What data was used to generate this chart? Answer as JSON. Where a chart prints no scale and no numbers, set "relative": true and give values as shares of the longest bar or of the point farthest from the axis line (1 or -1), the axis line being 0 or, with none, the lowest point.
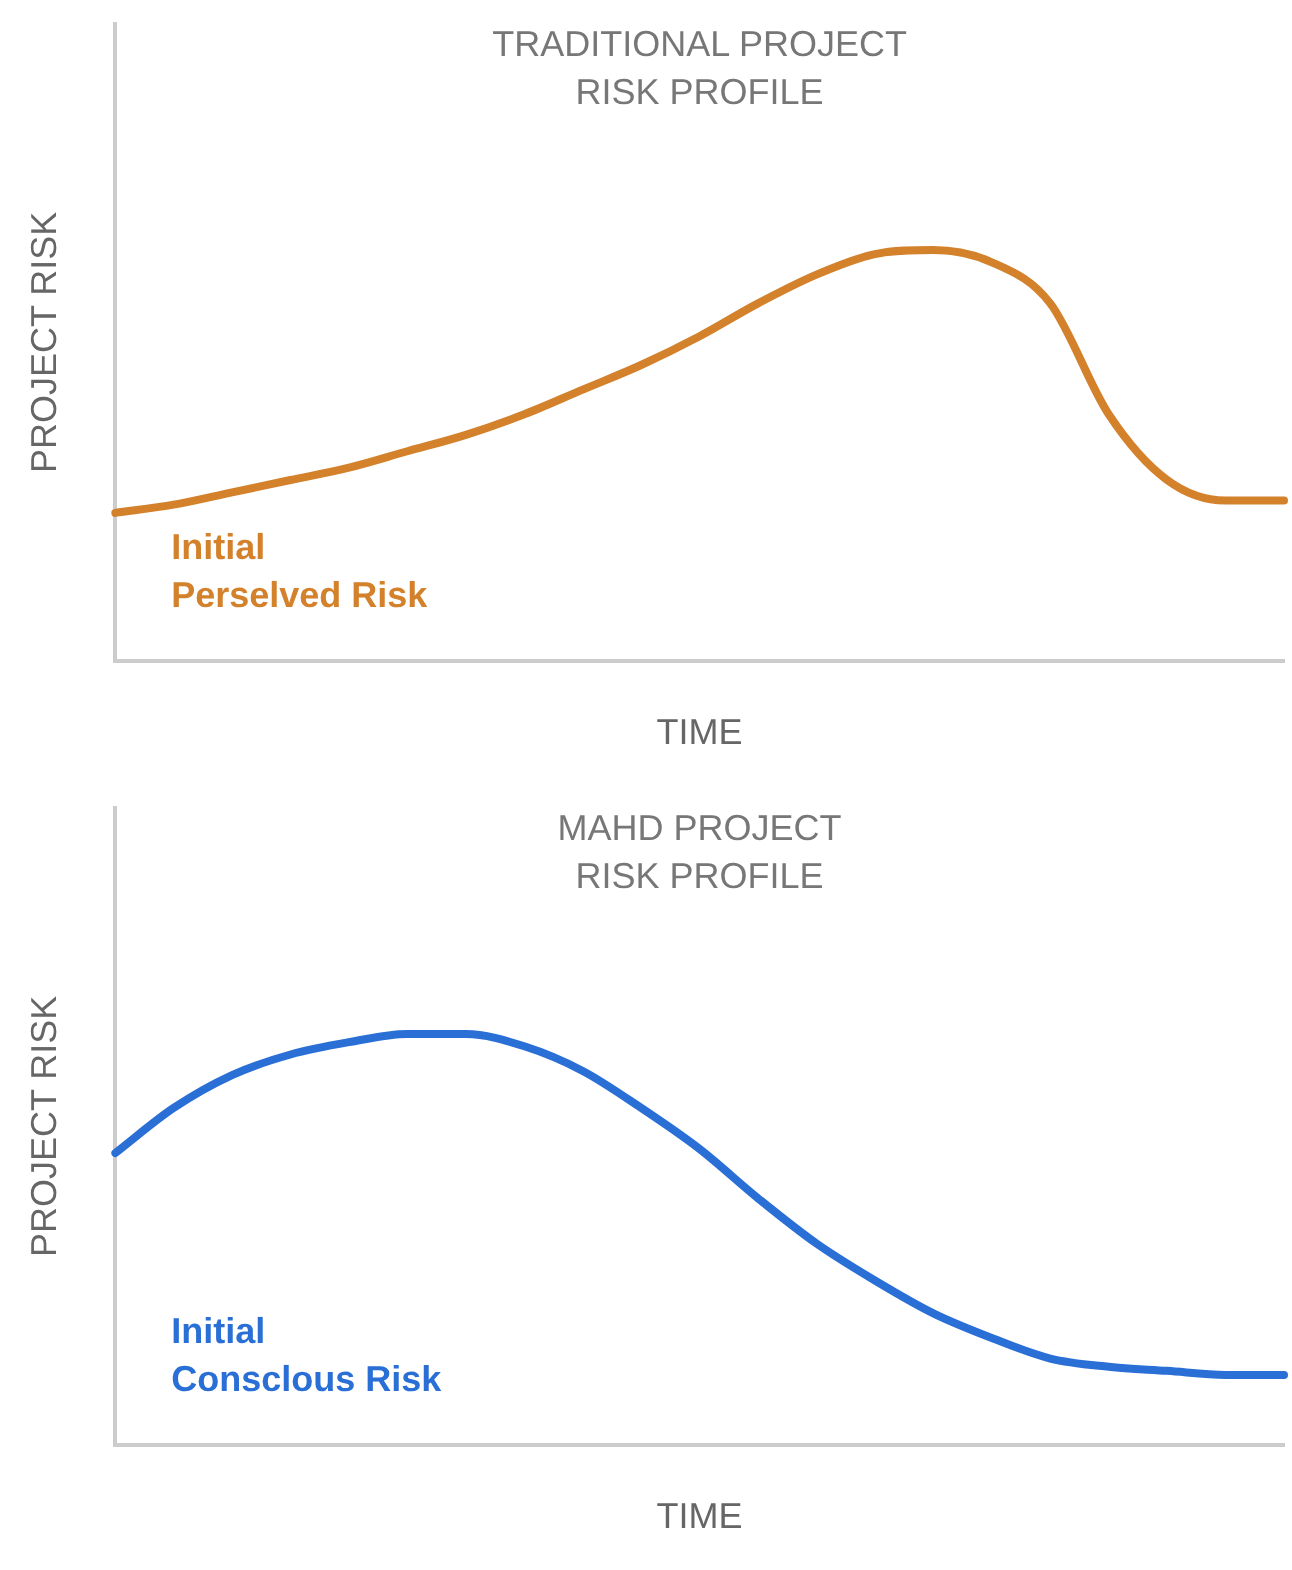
{
  "chart_data": [
    {
      "type": "line",
      "title": "TRADITIONAL PROJECT\nRISK PROFILE",
      "xlabel": "TIME",
      "ylabel": "PROJECT RISK",
      "relative": true,
      "grid": false,
      "legend": false,
      "marker": "none",
      "categories": [
        null,
        null,
        null,
        null,
        null,
        null,
        null,
        null,
        null,
        null,
        null,
        null,
        null,
        null,
        null,
        null,
        null,
        null,
        null,
        null,
        null
      ],
      "series": [
        {
          "color": "#d4812c",
          "values": [
            0.36,
            0.38,
            0.41,
            0.44,
            0.47,
            0.51,
            0.55,
            0.6,
            0.66,
            0.72,
            0.79,
            0.87,
            0.94,
            0.99,
            1,
            0.97,
            0.87,
            0.6,
            0.44,
            0.39,
            0.39
          ]
        }
      ],
      "annotations": [
        "Initial",
        "Perselved Risk"
      ]
    },
    {
      "type": "line",
      "title": "MAHD PROJECT\nRISK PROFILE",
      "xlabel": "TIME",
      "ylabel": "PROJECT RISK",
      "relative": true,
      "grid": false,
      "legend": false,
      "marker": "none",
      "categories": [
        null,
        null,
        null,
        null,
        null,
        null,
        null,
        null,
        null,
        null,
        null,
        null,
        null,
        null,
        null,
        null,
        null,
        null,
        null,
        null,
        null
      ],
      "series": [
        {
          "color": "#2a6fd6",
          "values": [
            0.71,
            0.82,
            0.9,
            0.95,
            0.98,
            1,
            1,
            0.97,
            0.91,
            0.82,
            0.72,
            0.6,
            0.49,
            0.4,
            0.32,
            0.26,
            0.21,
            0.19,
            0.18,
            0.17,
            0.17
          ]
        }
      ],
      "annotations": [
        "Initial",
        "Consclous Risk"
      ]
    }
  ]
}
